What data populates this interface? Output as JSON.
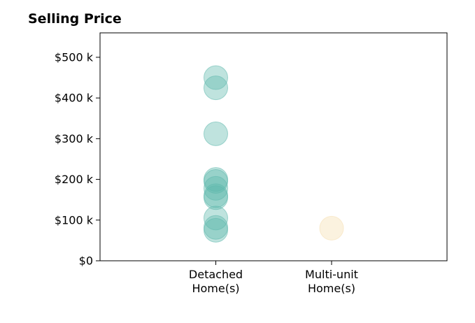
{
  "chart_data": {
    "type": "scatter",
    "title": "Selling Price",
    "categories": [
      "Detached\nHome(s)",
      "Multi-unit\nHome(s)"
    ],
    "series": [
      {
        "category": "Detached\nHome(s)",
        "color": "#5fb8ad",
        "values": [
          450000,
          425000,
          312000,
          200000,
          195000,
          178000,
          160000,
          155000,
          105000,
          82000,
          75000
        ]
      },
      {
        "category": "Multi-unit\nHome(s)",
        "color": "#f5deb0",
        "values": [
          80000
        ]
      }
    ],
    "y_ticks": [
      0,
      100000,
      200000,
      300000,
      400000,
      500000
    ],
    "y_tick_labels": [
      "$0",
      "$100 k",
      "$200 k",
      "$300 k",
      "$400 k",
      "$500 k"
    ],
    "ylim": [
      0,
      560000
    ],
    "grid": false,
    "xlabel": "",
    "ylabel": ""
  }
}
